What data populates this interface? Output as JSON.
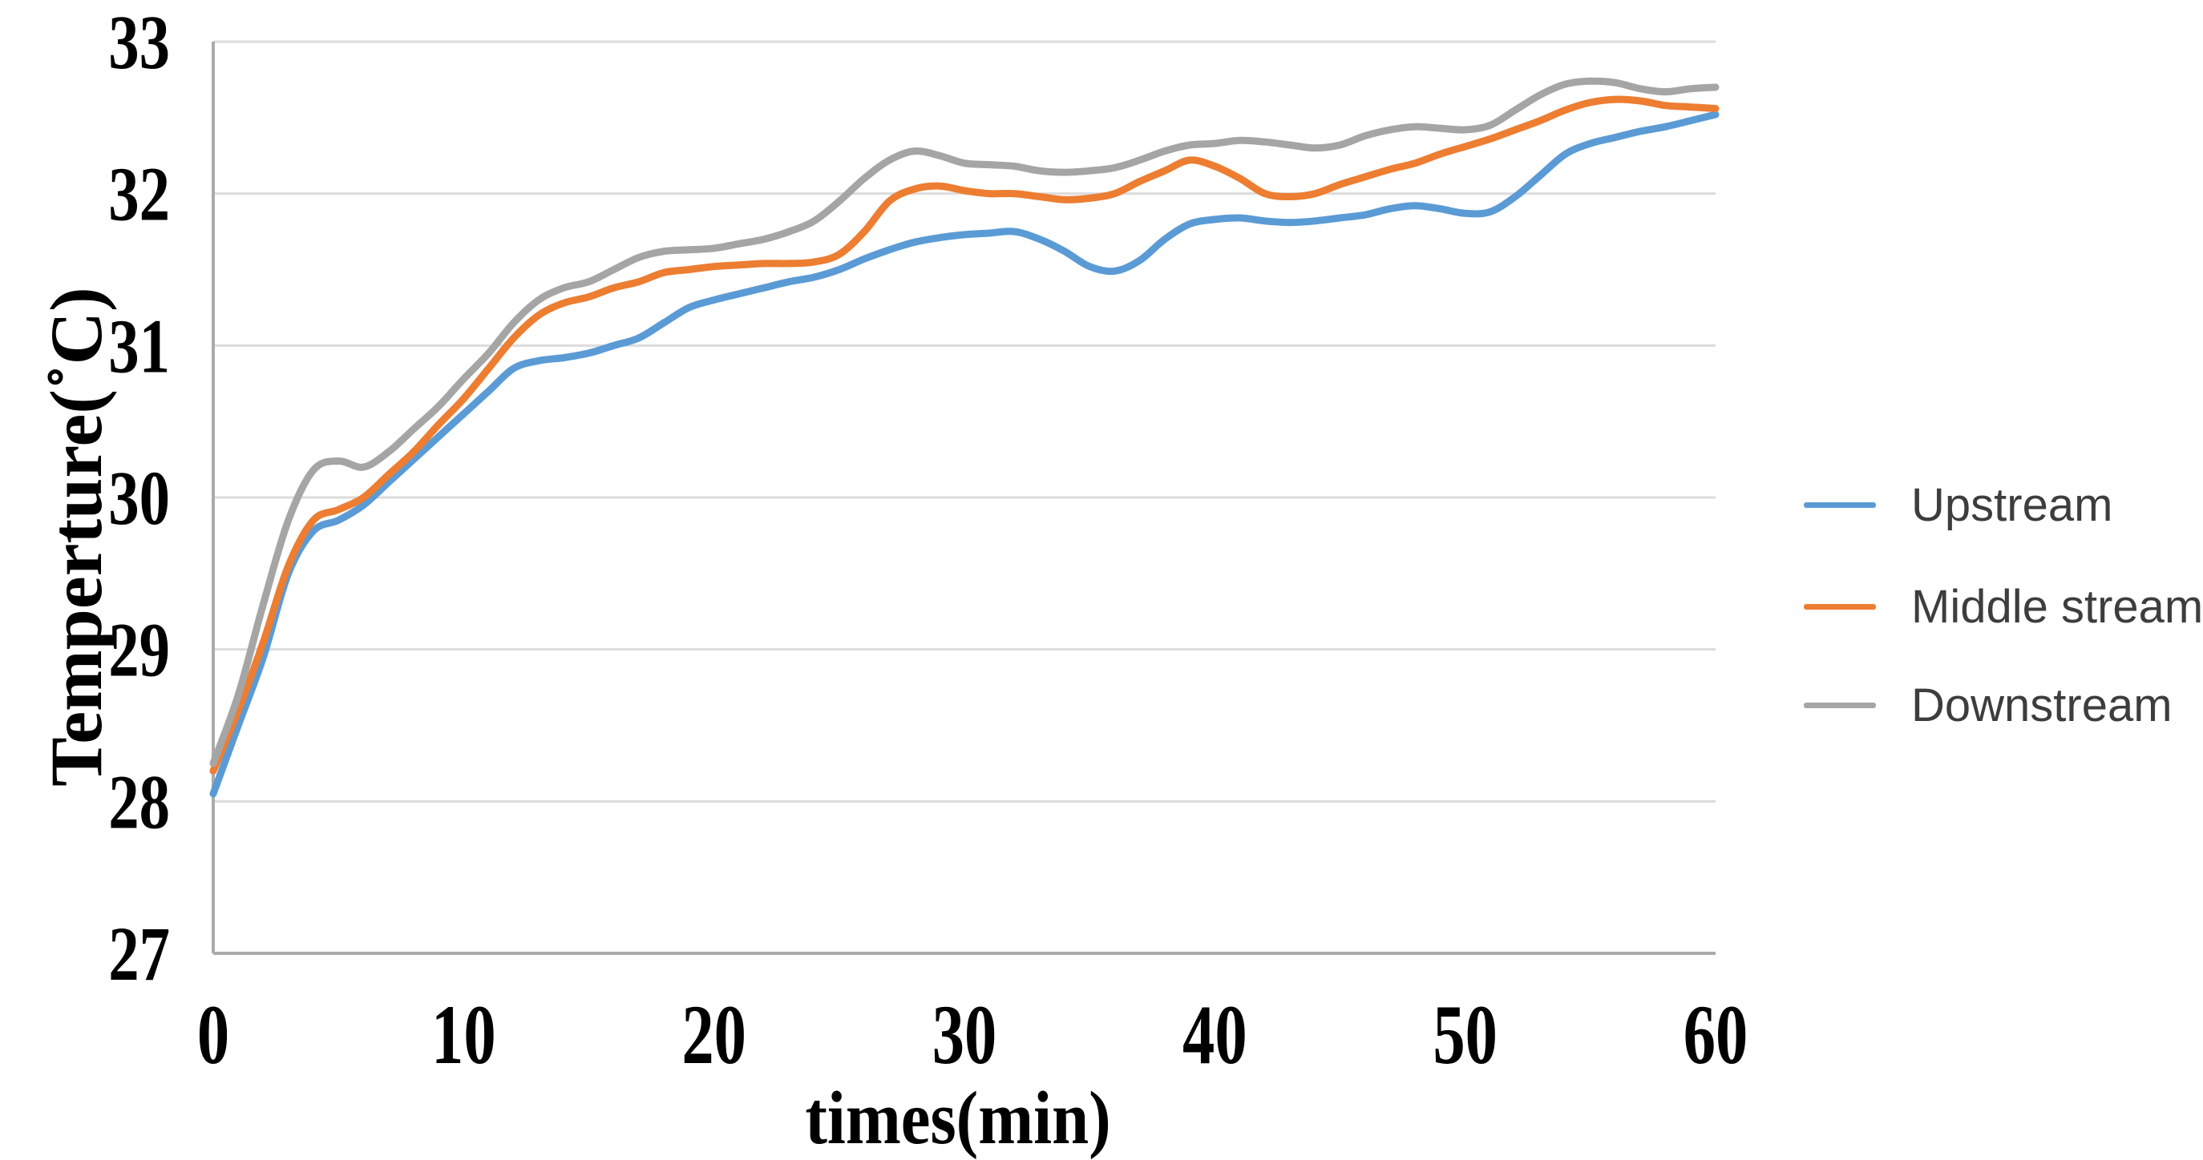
{
  "chart_data": {
    "type": "line",
    "title": "",
    "xlabel": "times(min)",
    "ylabel": "Temperture(˚C)",
    "xlim": [
      0,
      60
    ],
    "ylim": [
      27,
      33
    ],
    "x_ticks": [
      0,
      10,
      20,
      30,
      40,
      50,
      60
    ],
    "y_ticks": [
      27,
      28,
      29,
      30,
      31,
      32,
      33
    ],
    "grid": "horizontal",
    "legend_position": "right",
    "smooth": true,
    "x": [
      0,
      1,
      2,
      3,
      4,
      5,
      6,
      7,
      8,
      9,
      10,
      11,
      12,
      13,
      14,
      15,
      16,
      17,
      18,
      19,
      20,
      21,
      22,
      23,
      24,
      25,
      26,
      27,
      28,
      29,
      30,
      31,
      32,
      33,
      34,
      35,
      36,
      37,
      38,
      39,
      40,
      41,
      42,
      43,
      44,
      45,
      46,
      47,
      48,
      49,
      50,
      51,
      52,
      53,
      54,
      55,
      56,
      57,
      58,
      59,
      60
    ],
    "series": [
      {
        "name": "Upstream",
        "color": "#5B9BD5",
        "values": [
          28.05,
          28.5,
          28.95,
          29.5,
          29.78,
          29.85,
          29.95,
          30.1,
          30.25,
          30.4,
          30.55,
          30.7,
          30.85,
          30.9,
          30.92,
          30.95,
          31.0,
          31.05,
          31.15,
          31.25,
          31.3,
          31.34,
          31.38,
          31.42,
          31.45,
          31.5,
          31.57,
          31.63,
          31.68,
          31.71,
          31.73,
          31.74,
          31.75,
          31.7,
          31.62,
          31.52,
          31.49,
          31.56,
          31.7,
          31.8,
          31.83,
          31.84,
          31.82,
          31.81,
          31.82,
          31.84,
          31.86,
          31.9,
          31.92,
          31.9,
          31.87,
          31.88,
          31.98,
          32.12,
          32.26,
          32.33,
          32.37,
          32.41,
          32.44,
          32.48,
          32.52
        ]
      },
      {
        "name": "Middle stream",
        "color": "#ED7D31",
        "values": [
          28.2,
          28.6,
          29.05,
          29.55,
          29.85,
          29.92,
          30.0,
          30.15,
          30.3,
          30.48,
          30.65,
          30.85,
          31.05,
          31.2,
          31.28,
          31.32,
          31.38,
          31.42,
          31.48,
          31.5,
          31.52,
          31.53,
          31.54,
          31.54,
          31.55,
          31.6,
          31.75,
          31.95,
          32.03,
          32.05,
          32.02,
          32.0,
          32.0,
          31.98,
          31.96,
          31.97,
          32.0,
          32.08,
          32.15,
          32.22,
          32.18,
          32.1,
          32.0,
          31.98,
          32.0,
          32.06,
          32.11,
          32.16,
          32.2,
          32.26,
          32.31,
          32.36,
          32.42,
          32.48,
          32.55,
          32.6,
          32.62,
          32.61,
          32.58,
          32.57,
          32.56
        ]
      },
      {
        "name": "Downstream",
        "color": "#A5A5A5",
        "values": [
          28.25,
          28.7,
          29.3,
          29.85,
          30.18,
          30.24,
          30.2,
          30.3,
          30.45,
          30.6,
          30.78,
          30.95,
          31.15,
          31.3,
          31.38,
          31.42,
          31.5,
          31.58,
          31.62,
          31.63,
          31.64,
          31.67,
          31.7,
          31.75,
          31.82,
          31.95,
          32.1,
          32.22,
          32.28,
          32.25,
          32.2,
          32.19,
          32.18,
          32.15,
          32.14,
          32.15,
          32.17,
          32.22,
          32.28,
          32.32,
          32.33,
          32.35,
          32.34,
          32.32,
          32.3,
          32.32,
          32.38,
          32.42,
          32.44,
          32.43,
          32.42,
          32.45,
          32.55,
          32.65,
          32.72,
          32.74,
          32.73,
          32.69,
          32.67,
          32.69,
          32.7
        ]
      }
    ]
  },
  "style": {
    "background": "#FFFFFF",
    "gridline_color": "#DCDCDC",
    "axis_line_color": "#ABABAB",
    "tick_text_color": "#000000",
    "legend_text_color": "#3D3D3D"
  }
}
